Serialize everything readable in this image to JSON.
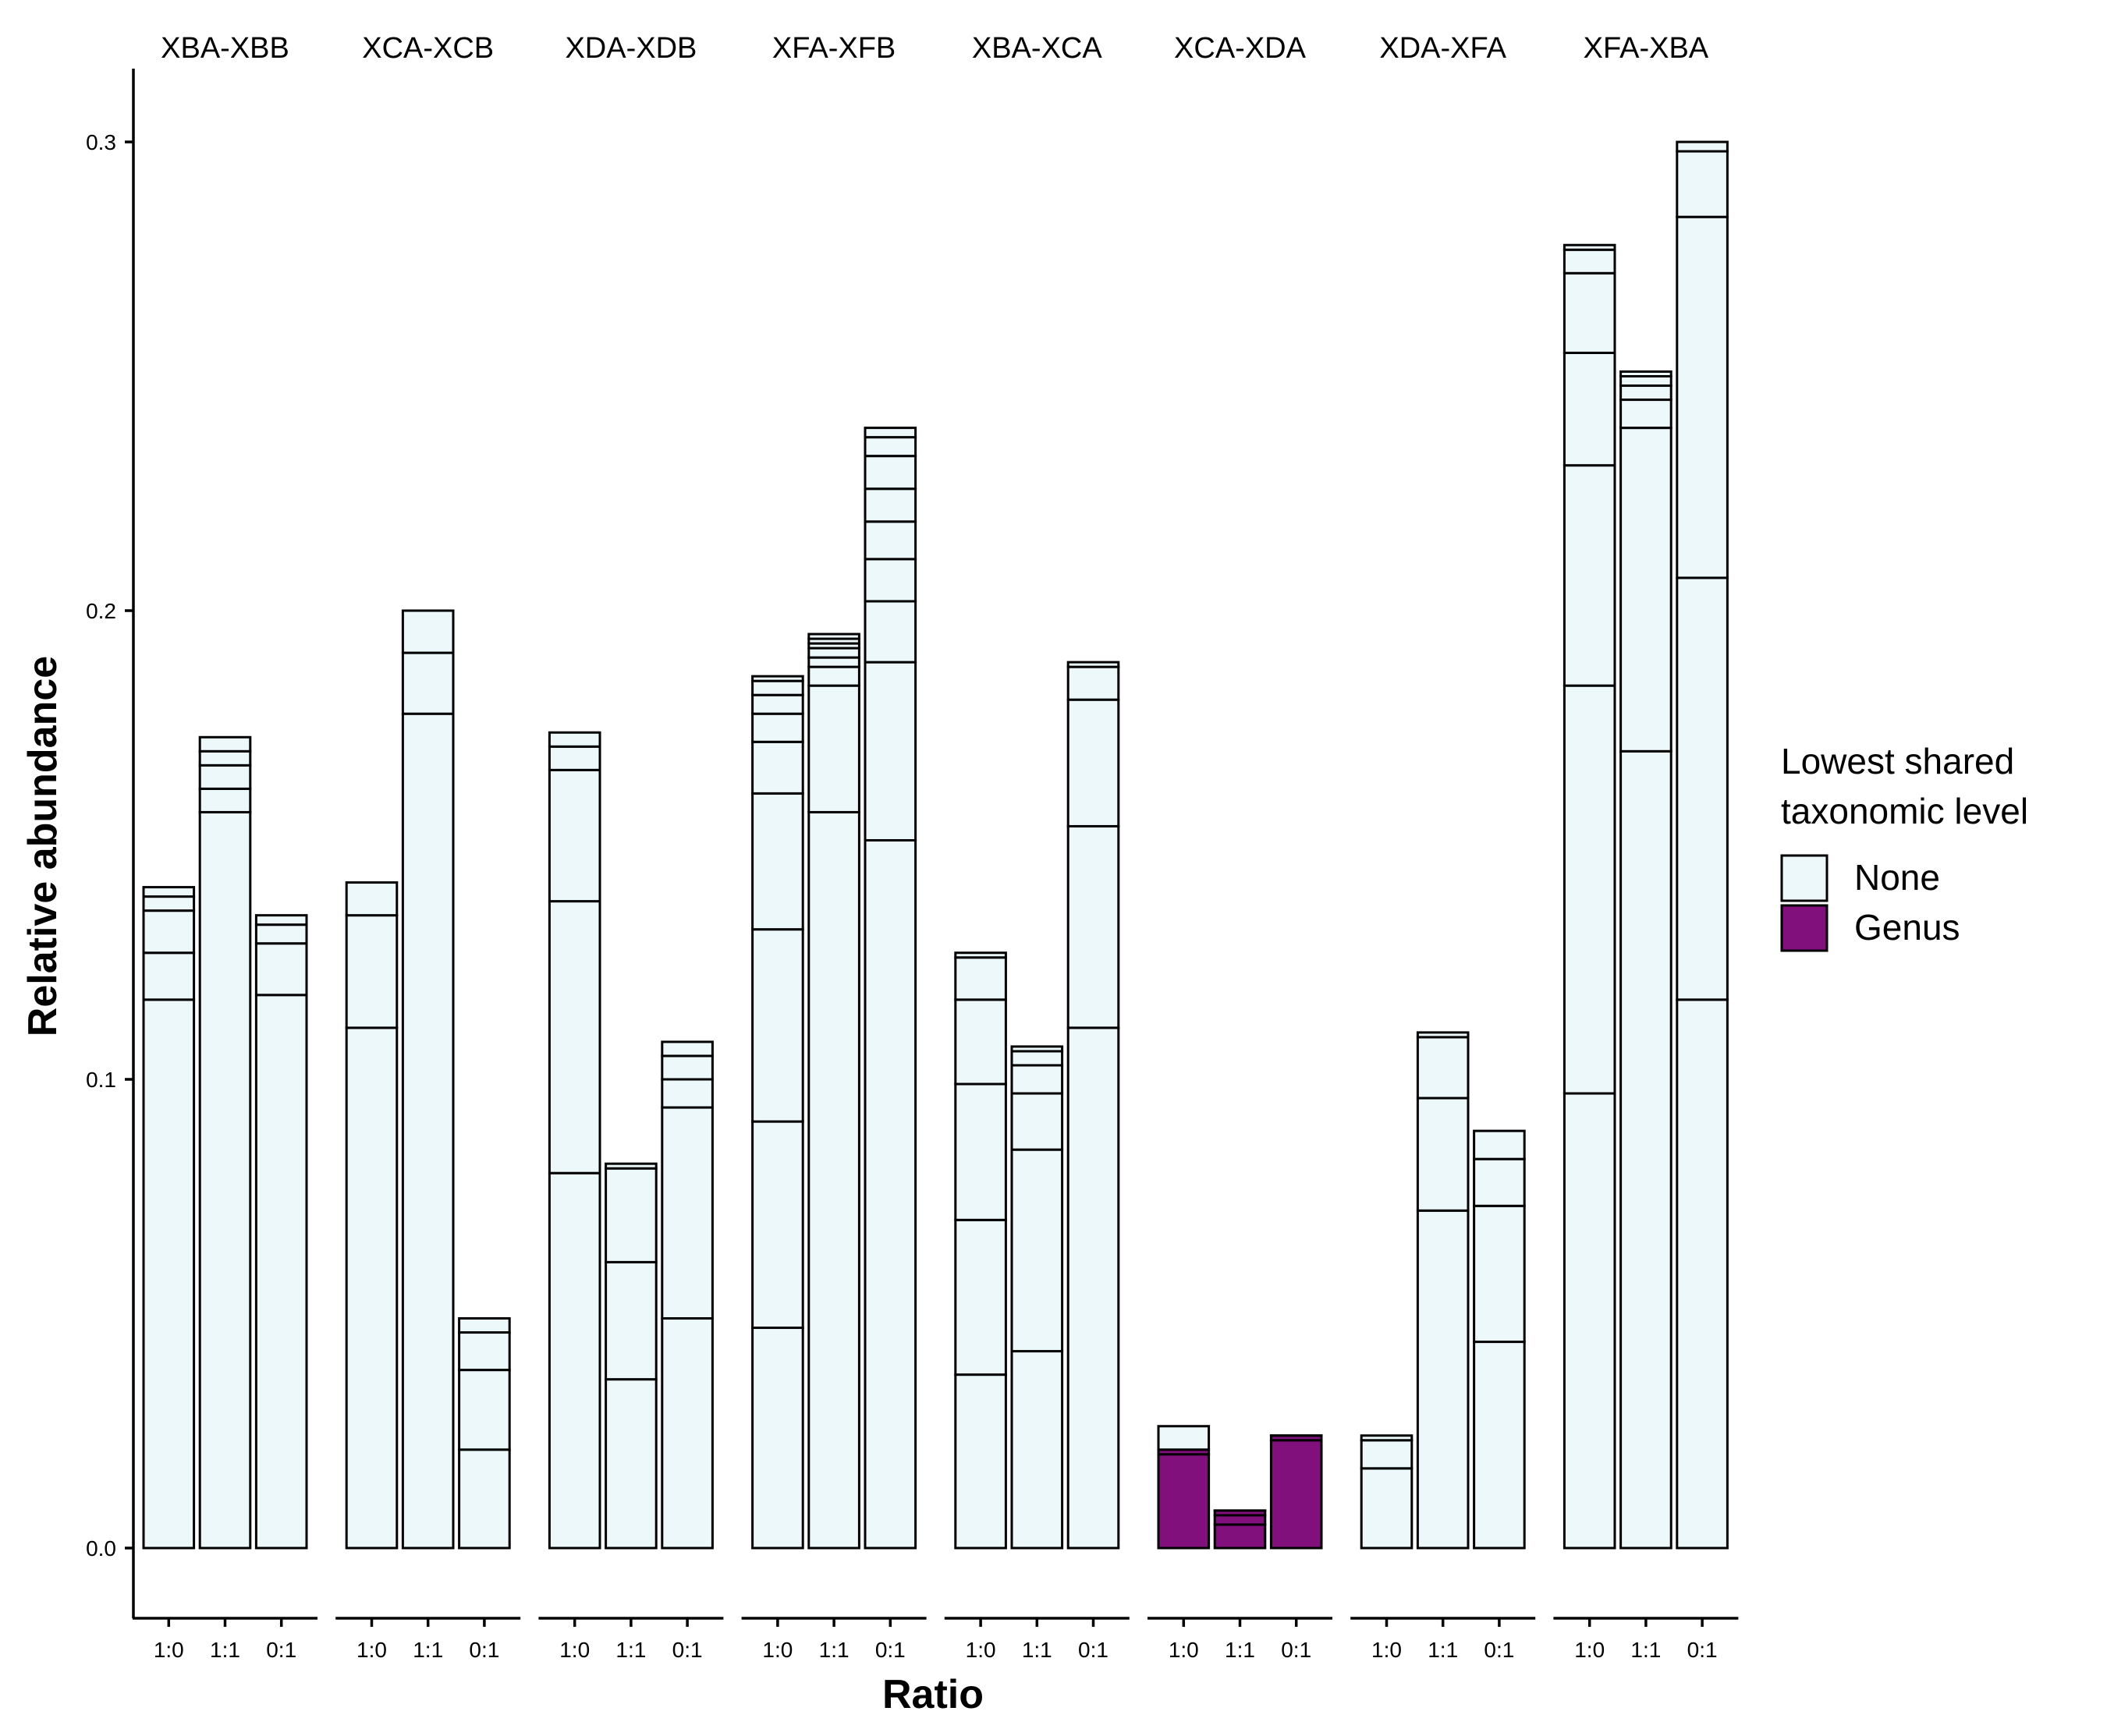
{
  "chart_data": {
    "type": "bar",
    "stacked": true,
    "faceted": true,
    "xlabel": "Ratio",
    "ylabel": "Relative abundance",
    "ylim": [
      -0.015,
      0.315
    ],
    "yticks": [
      0.0,
      0.1,
      0.2,
      0.3
    ],
    "ytick_labels": [
      "0.0",
      "0.1",
      "0.2",
      "0.3"
    ],
    "grid": false,
    "legend": {
      "title": [
        "Lowest shared",
        "taxonomic level"
      ],
      "placement": "right",
      "entries": [
        {
          "name": "None",
          "color": "#EDF8FA"
        },
        {
          "name": "Genus",
          "color": "#810F7C"
        }
      ]
    },
    "categories": [
      "1:0",
      "1:1",
      "0:1"
    ],
    "panels": [
      {
        "name": "XBA-XBB",
        "bars": [
          {
            "category": "1:0",
            "none_boundaries": [
              0,
              0.117,
              0.127,
              0.136,
              0.139,
              0.141
            ]
          },
          {
            "category": "1:1",
            "none_boundaries": [
              0,
              0.157,
              0.162,
              0.167,
              0.17,
              0.173
            ]
          },
          {
            "category": "0:1",
            "none_boundaries": [
              0,
              0.118,
              0.129,
              0.133,
              0.135
            ]
          }
        ]
      },
      {
        "name": "XCA-XCB",
        "bars": [
          {
            "category": "1:0",
            "none_boundaries": [
              0,
              0.111,
              0.135,
              0.142
            ]
          },
          {
            "category": "1:1",
            "none_boundaries": [
              0,
              0.178,
              0.191,
              0.2
            ]
          },
          {
            "category": "0:1",
            "none_boundaries": [
              0,
              0.021,
              0.038,
              0.046,
              0.049
            ]
          }
        ]
      },
      {
        "name": "XDA-XDB",
        "bars": [
          {
            "category": "1:0",
            "none_boundaries": [
              0,
              0.08,
              0.138,
              0.166,
              0.171,
              0.174
            ]
          },
          {
            "category": "1:1",
            "none_boundaries": [
              0,
              0.036,
              0.061,
              0.081,
              0.082
            ]
          },
          {
            "category": "0:1",
            "none_boundaries": [
              0,
              0.049,
              0.094,
              0.1,
              0.105,
              0.108
            ]
          }
        ]
      },
      {
        "name": "XFA-XFB",
        "bars": [
          {
            "category": "1:0",
            "none_boundaries": [
              0,
              0.047,
              0.091,
              0.132,
              0.161,
              0.172,
              0.178,
              0.182,
              0.185,
              0.186
            ]
          },
          {
            "category": "1:1",
            "none_boundaries": [
              0,
              0.157,
              0.184,
              0.188,
              0.19,
              0.192,
              0.193,
              0.194,
              0.195
            ]
          },
          {
            "category": "0:1",
            "none_boundaries": [
              0,
              0.151,
              0.189,
              0.202,
              0.211,
              0.219,
              0.226,
              0.233,
              0.237,
              0.239
            ]
          }
        ]
      },
      {
        "name": "XBA-XCA",
        "bars": [
          {
            "category": "1:0",
            "none_boundaries": [
              0,
              0.037,
              0.07,
              0.099,
              0.117,
              0.126,
              0.127
            ]
          },
          {
            "category": "1:1",
            "none_boundaries": [
              0,
              0.042,
              0.085,
              0.097,
              0.103,
              0.106,
              0.107
            ]
          },
          {
            "category": "0:1",
            "none_boundaries": [
              0,
              0.111,
              0.154,
              0.181,
              0.188,
              0.189
            ]
          }
        ]
      },
      {
        "name": "XCA-XDA",
        "bars": [
          {
            "category": "1:0",
            "genus_boundaries": [
              0,
              0.02,
              0.021
            ],
            "none_boundaries": [
              0.021,
              0.026
            ]
          },
          {
            "category": "1:1",
            "genus_boundaries": [
              0,
              0.005,
              0.007,
              0.008
            ],
            "none_boundaries": [
              0.008,
              0.008
            ]
          },
          {
            "category": "0:1",
            "genus_boundaries": [
              0,
              0.023,
              0.024
            ],
            "none_boundaries": [
              0.024,
              0.024
            ]
          }
        ]
      },
      {
        "name": "XDA-XFA",
        "bars": [
          {
            "category": "1:0",
            "none_boundaries": [
              0,
              0.017,
              0.023,
              0.024
            ]
          },
          {
            "category": "1:1",
            "none_boundaries": [
              0,
              0.072,
              0.096,
              0.109,
              0.11
            ]
          },
          {
            "category": "0:1",
            "none_boundaries": [
              0,
              0.044,
              0.073,
              0.083,
              0.089
            ]
          }
        ]
      },
      {
        "name": "XFA-XBA",
        "bars": [
          {
            "category": "1:0",
            "none_boundaries": [
              0,
              0.097,
              0.184,
              0.231,
              0.255,
              0.272,
              0.277,
              0.278
            ]
          },
          {
            "category": "1:1",
            "none_boundaries": [
              0,
              0.17,
              0.239,
              0.245,
              0.248,
              0.25,
              0.251
            ]
          },
          {
            "category": "0:1",
            "none_boundaries": [
              0,
              0.117,
              0.207,
              0.284,
              0.298,
              0.3
            ]
          }
        ]
      }
    ]
  }
}
